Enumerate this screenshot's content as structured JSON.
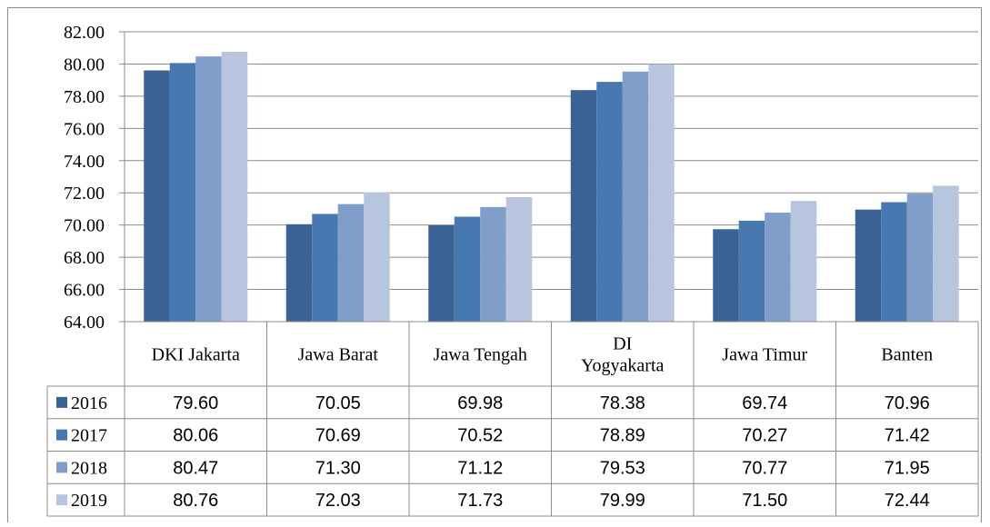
{
  "chart_data": {
    "type": "bar",
    "categories": [
      "DKI Jakarta",
      "Jawa Barat",
      "Jawa Tengah",
      "DI Yogyakarta",
      "Jawa Timur",
      "Banten"
    ],
    "category_display": [
      [
        "DKI Jakarta"
      ],
      [
        "Jawa Barat"
      ],
      [
        "Jawa Tengah"
      ],
      [
        "DI",
        "Yogyakarta"
      ],
      [
        "Jawa Timur"
      ],
      [
        "Banten"
      ]
    ],
    "series": [
      {
        "name": "2016",
        "color": "#3b6294",
        "values": [
          79.6,
          70.05,
          69.98,
          78.38,
          69.74,
          70.96
        ],
        "labels": [
          "79.60",
          "70.05",
          "69.98",
          "78.38",
          "69.74",
          "70.96"
        ]
      },
      {
        "name": "2017",
        "color": "#4778b0",
        "values": [
          80.06,
          70.69,
          70.52,
          78.89,
          70.27,
          71.42
        ],
        "labels": [
          "80.06",
          "70.69",
          "70.52",
          "78.89",
          "70.27",
          "71.42"
        ]
      },
      {
        "name": "2018",
        "color": "#7f9ec9",
        "values": [
          80.47,
          71.3,
          71.12,
          79.53,
          70.77,
          71.95
        ],
        "labels": [
          "80.47",
          "71.30",
          "71.12",
          "79.53",
          "70.77",
          "71.95"
        ]
      },
      {
        "name": "2019",
        "color": "#b7c5df",
        "values": [
          80.76,
          72.03,
          71.73,
          79.99,
          71.5,
          72.44
        ],
        "labels": [
          "80.76",
          "72.03",
          "71.73",
          "79.99",
          "71.50",
          "72.44"
        ]
      }
    ],
    "ylim": [
      64,
      82
    ],
    "yticks": [
      "64.00",
      "66.00",
      "68.00",
      "70.00",
      "72.00",
      "74.00",
      "76.00",
      "78.00",
      "80.00",
      "82.00"
    ],
    "grid": true,
    "legend": "data table with legend keys",
    "title": "",
    "xlabel": "",
    "ylabel": ""
  }
}
